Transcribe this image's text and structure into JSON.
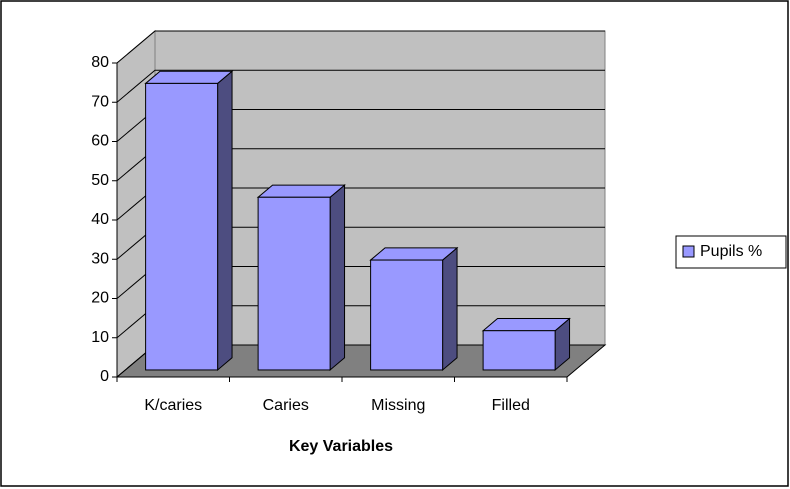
{
  "chart_data": {
    "type": "bar",
    "xlabel": "Key Variables",
    "categories": [
      "K/caries",
      "Caries",
      "Missing",
      "Filled"
    ],
    "series": [
      {
        "name": "Pupils %",
        "color": "#9999ff",
        "values": [
          73,
          44,
          28,
          10
        ]
      }
    ],
    "ylim": [
      0,
      80
    ],
    "yticks": [
      0,
      10,
      20,
      30,
      40,
      50,
      60,
      70,
      80
    ],
    "grid": true,
    "legend": "right"
  }
}
